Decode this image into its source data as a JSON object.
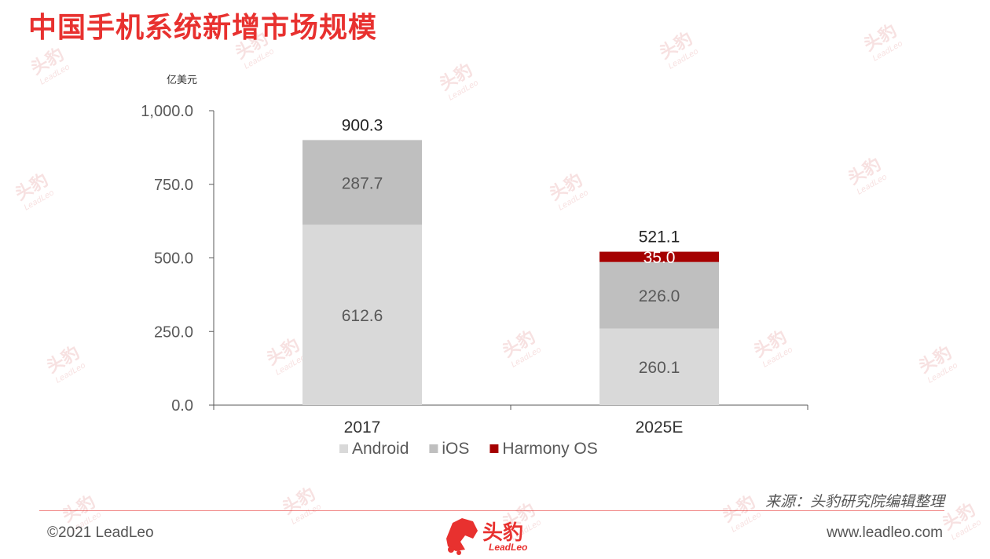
{
  "title": "中国手机系统新增市场规模",
  "source": "来源：头豹研究院编辑整理",
  "footer": {
    "copyright": "©2021 LeadLeo",
    "website": "www.leadleo.com",
    "logo_cn": "头豹",
    "logo_en": "LeadLeo"
  },
  "watermark": {
    "cn": "头豹",
    "en": "LeadLeo"
  },
  "colors": {
    "title": "#e8312f",
    "android": "#d9d9d9",
    "ios": "#bfbfbf",
    "harmony": "#a50000",
    "axis": "#595959"
  },
  "chart_data": {
    "type": "bar",
    "stacked": true,
    "unit_label": "亿美元",
    "categories": [
      "2017",
      "2025E"
    ],
    "series": [
      {
        "name": "Android",
        "values": [
          612.6,
          260.1
        ],
        "labels": [
          "612.6",
          "260.1"
        ],
        "color": "#d9d9d9"
      },
      {
        "name": "iOS",
        "values": [
          287.7,
          226.0
        ],
        "labels": [
          "287.7",
          "226.0"
        ],
        "color": "#bfbfbf"
      },
      {
        "name": "Harmony OS",
        "values": [
          0,
          35.0
        ],
        "labels": [
          "",
          "35.0"
        ],
        "color": "#a50000"
      }
    ],
    "totals": [
      "900.3",
      "521.1"
    ],
    "ylim": [
      0,
      1000
    ],
    "yticks": [
      "0.0",
      "250.0",
      "500.0",
      "750.0",
      "1,000.0"
    ],
    "ytick_values": [
      0,
      250,
      500,
      750,
      1000
    ],
    "legend_position": "bottom"
  }
}
